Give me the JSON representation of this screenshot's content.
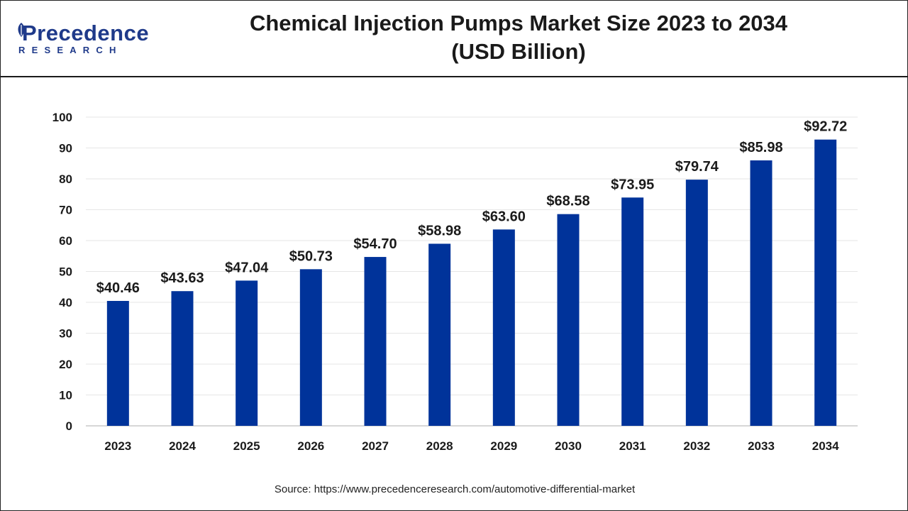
{
  "header": {
    "logo_name": "Precedence",
    "logo_sub": "RESEARCH",
    "title_line1": "Chemical Injection Pumps Market Size 2023 to 2034",
    "title_line2": "(USD Billion)"
  },
  "source": "Source: https://www.precedenceresearch.com/automotive-differential-market",
  "colors": {
    "bar": "#00339a",
    "grid": "#e6e6e6",
    "brand": "#1f3a8a"
  },
  "chart_data": {
    "type": "bar",
    "categories": [
      "2023",
      "2024",
      "2025",
      "2026",
      "2027",
      "2028",
      "2029",
      "2030",
      "2031",
      "2032",
      "2033",
      "2034"
    ],
    "values": [
      40.46,
      43.63,
      47.04,
      50.73,
      54.7,
      58.98,
      63.6,
      68.58,
      73.95,
      79.74,
      85.98,
      92.72
    ],
    "value_labels": [
      "$40.46",
      "$43.63",
      "$47.04",
      "$50.73",
      "$54.70",
      "$58.98",
      "$63.60",
      "$68.58",
      "$73.95",
      "$79.74",
      "$85.98",
      "$92.72"
    ],
    "title": "Chemical Injection Pumps Market Size 2023 to 2034 (USD Billion)",
    "xlabel": "",
    "ylabel": "",
    "ylim": [
      0,
      100
    ],
    "yticks": [
      0,
      10,
      20,
      30,
      40,
      50,
      60,
      70,
      80,
      90,
      100
    ],
    "grid": true,
    "legend": "none"
  }
}
